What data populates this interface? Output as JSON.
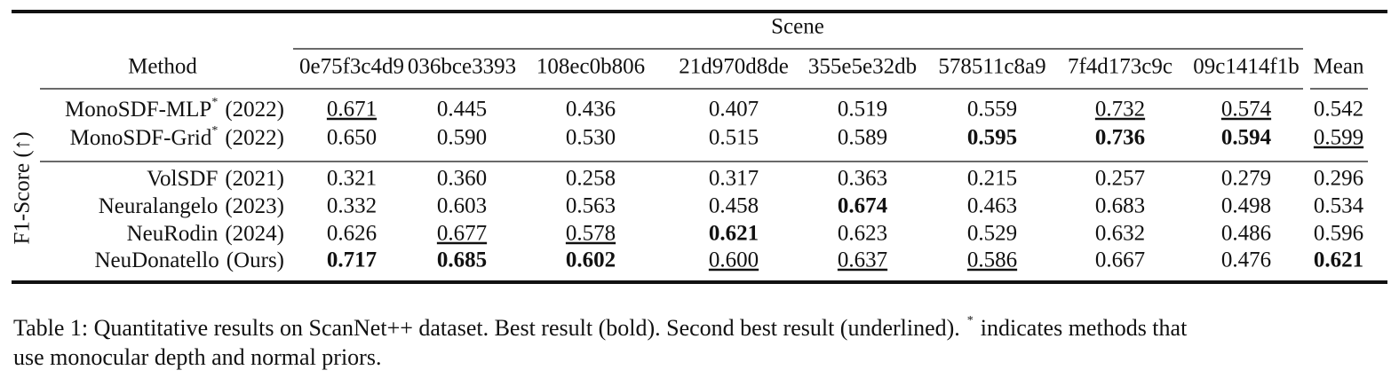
{
  "table": {
    "group_header": "Scene",
    "side_label": "F1-Score (↑)",
    "columns": [
      "Method",
      "0e75f3c4d9",
      "036bce3393",
      "108ec0b806",
      "21d970d8de",
      "355e5e32db",
      "578511c8a9",
      "7f4d173c9c",
      "09c1414f1b",
      "Mean"
    ],
    "rows": [
      {
        "method": "MonoSDF-MLP",
        "mark": "*",
        "year": "(2022)",
        "values": [
          "0.671",
          "0.445",
          "0.436",
          "0.407",
          "0.519",
          "0.559",
          "0.732",
          "0.574",
          "0.542"
        ]
      },
      {
        "method": "MonoSDF-Grid",
        "mark": "*",
        "year": "(2022)",
        "values": [
          "0.650",
          "0.590",
          "0.530",
          "0.515",
          "0.589",
          "0.595",
          "0.736",
          "0.594",
          "0.599"
        ]
      },
      {
        "method": "VolSDF",
        "year": "(2021)",
        "values": [
          "0.321",
          "0.360",
          "0.258",
          "0.317",
          "0.363",
          "0.215",
          "0.257",
          "0.279",
          "0.296"
        ]
      },
      {
        "method": "Neuralangelo",
        "year": "(2023)",
        "values": [
          "0.332",
          "0.603",
          "0.563",
          "0.458",
          "0.674",
          "0.463",
          "0.683",
          "0.498",
          "0.534"
        ]
      },
      {
        "method": "NeuRodin",
        "year": "(2024)",
        "values": [
          "0.626",
          "0.677",
          "0.578",
          "0.621",
          "0.623",
          "0.529",
          "0.632",
          "0.486",
          "0.596"
        ]
      },
      {
        "method": "NeuDonatello",
        "year": "(Ours)",
        "values": [
          "0.717",
          "0.685",
          "0.602",
          "0.600",
          "0.637",
          "0.586",
          "0.667",
          "0.476",
          "0.621"
        ]
      }
    ]
  },
  "caption": {
    "before_mark": "Table 1: Quantitative results on ScanNet++ dataset. Best result (bold). Second best result (underlined).",
    "mark": "*",
    "after_mark_line1": "indicates methods that",
    "line2": "use monocular depth and normal priors."
  }
}
